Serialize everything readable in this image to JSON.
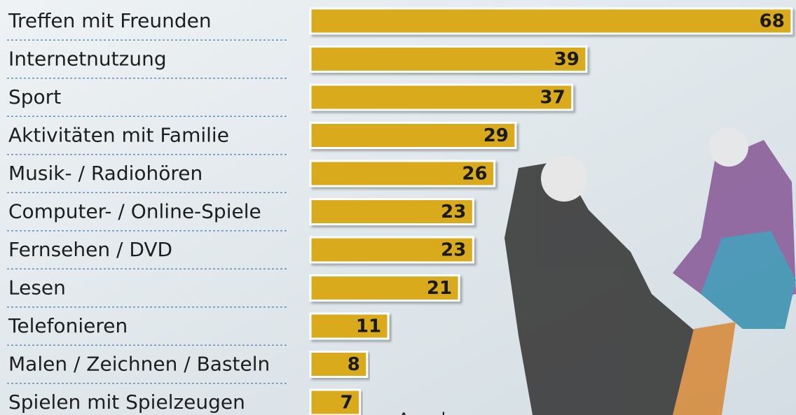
{
  "chart_data": {
    "type": "bar",
    "orientation": "horizontal",
    "categories": [
      "Treffen mit Freunden",
      "Internetnutzung",
      "Sport",
      "Aktivitäten mit Familie",
      "Musik- / Radiohören",
      "Computer- / Online-Spiele",
      "Fernsehen / DVD",
      "Lesen",
      "Telefonieren",
      "Malen / Zeichnen / Basteln",
      "Spielen mit Spielzeugen"
    ],
    "values": [
      68,
      39,
      37,
      29,
      26,
      23,
      23,
      21,
      11,
      8,
      7
    ],
    "color": "#d9aa1e",
    "note": "Angaben"
  }
}
